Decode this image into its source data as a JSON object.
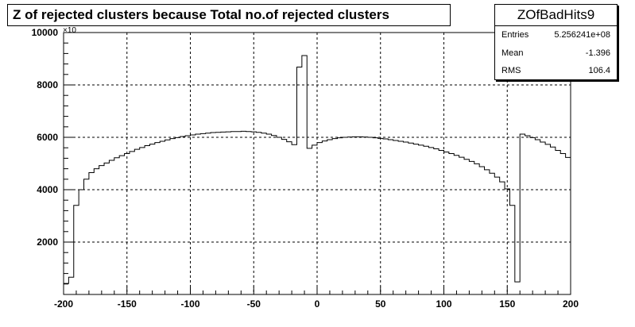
{
  "title": "Z of rejected clusters  because Total no.of rejected clusters",
  "stats": {
    "name": "ZOfBadHits9",
    "rows": [
      {
        "label": "Entries",
        "value": "5.256241e+08"
      },
      {
        "label": "Mean",
        "value": "-1.396"
      },
      {
        "label": "RMS",
        "value": "106.4"
      }
    ]
  },
  "exponent_label": "×10",
  "chart_data": {
    "type": "histogram",
    "title": "Z of rejected clusters  because Total no.of rejected clusters",
    "xlabel": "",
    "ylabel": "",
    "xlim": [
      -200,
      200
    ],
    "ylim": [
      0,
      10000
    ],
    "grid": true,
    "x_ticks": [
      -200,
      -150,
      -100,
      -50,
      0,
      50,
      100,
      150,
      200
    ],
    "x_tick_labels": [
      "-200",
      "-150",
      "-100",
      "-50",
      "0",
      "50",
      "100",
      "150",
      "200"
    ],
    "y_ticks": [
      2000,
      4000,
      6000,
      8000,
      10000
    ],
    "y_tick_labels": [
      "2000",
      "4000",
      "6000",
      "8000",
      "10000"
    ],
    "bin_width": 4,
    "bin_low_edges": [
      -200,
      -196,
      -192,
      -188,
      -184,
      -180,
      -176,
      -172,
      -168,
      -164,
      -160,
      -156,
      -152,
      -148,
      -144,
      -140,
      -136,
      -132,
      -128,
      -124,
      -120,
      -116,
      -112,
      -108,
      -104,
      -100,
      -96,
      -92,
      -88,
      -84,
      -80,
      -76,
      -72,
      -68,
      -64,
      -60,
      -56,
      -52,
      -48,
      -44,
      -40,
      -36,
      -32,
      -28,
      -24,
      -20,
      -16,
      -12,
      -8,
      -4,
      0,
      4,
      8,
      12,
      16,
      20,
      24,
      28,
      32,
      36,
      40,
      44,
      48,
      52,
      56,
      60,
      64,
      68,
      72,
      76,
      80,
      84,
      88,
      92,
      96,
      100,
      104,
      108,
      112,
      116,
      120,
      124,
      128,
      132,
      136,
      140,
      144,
      148,
      152,
      156,
      160,
      164,
      168,
      172,
      176,
      180,
      184,
      188,
      192,
      196
    ],
    "values": [
      420,
      660,
      3400,
      4000,
      4400,
      4650,
      4800,
      4920,
      5020,
      5120,
      5220,
      5300,
      5380,
      5460,
      5540,
      5610,
      5680,
      5740,
      5800,
      5850,
      5900,
      5950,
      5990,
      6030,
      6060,
      6090,
      6120,
      6140,
      6160,
      6180,
      6190,
      6200,
      6210,
      6220,
      6220,
      6230,
      6220,
      6210,
      6190,
      6160,
      6120,
      6070,
      6000,
      5920,
      5830,
      5720,
      8680,
      9120,
      5580,
      5700,
      5800,
      5860,
      5910,
      5950,
      5980,
      6000,
      6010,
      6020,
      6020,
      6010,
      6000,
      5980,
      5960,
      5940,
      5910,
      5880,
      5850,
      5820,
      5780,
      5740,
      5700,
      5660,
      5610,
      5560,
      5500,
      5440,
      5380,
      5310,
      5240,
      5160,
      5080,
      4990,
      4880,
      4760,
      4630,
      4480,
      4300,
      4030,
      3400,
      480,
      6120,
      6060,
      5990,
      5910,
      5820,
      5730,
      5630,
      5500,
      5380,
      5230
    ]
  }
}
